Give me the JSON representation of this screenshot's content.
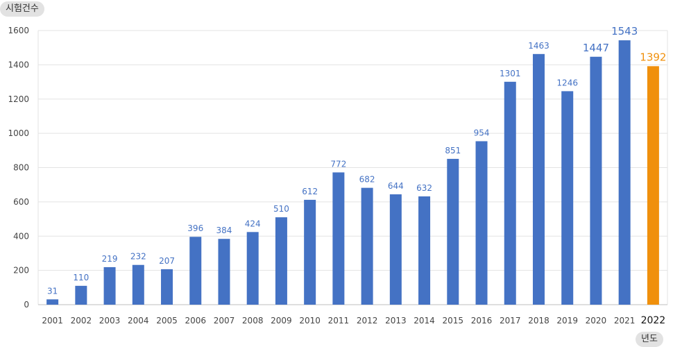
{
  "chart_data": {
    "type": "bar",
    "title": "",
    "ylabel": "시험건수",
    "xlabel": "년도",
    "ylim": [
      0,
      1600
    ],
    "yticks": [
      0,
      200,
      400,
      600,
      800,
      1000,
      1200,
      1400,
      1600
    ],
    "grid": true,
    "categories": [
      "2001",
      "2002",
      "2003",
      "2004",
      "2005",
      "2006",
      "2007",
      "2008",
      "2009",
      "2010",
      "2011",
      "2012",
      "2013",
      "2014",
      "2015",
      "2016",
      "2017",
      "2018",
      "2019",
      "2020",
      "2021",
      "2022"
    ],
    "values": [
      31,
      110,
      219,
      232,
      207,
      396,
      384,
      424,
      510,
      612,
      772,
      682,
      644,
      632,
      851,
      954,
      1301,
      1463,
      1246,
      1447,
      1543,
      1392
    ],
    "colors": {
      "bar": "#4472c4",
      "highlight": "#f0900c",
      "grid": "#e3e3e3",
      "axis": "#bfbfbf",
      "tick_text": "#444444",
      "label_text": "#4472c4"
    },
    "highlight_category": "2022"
  }
}
